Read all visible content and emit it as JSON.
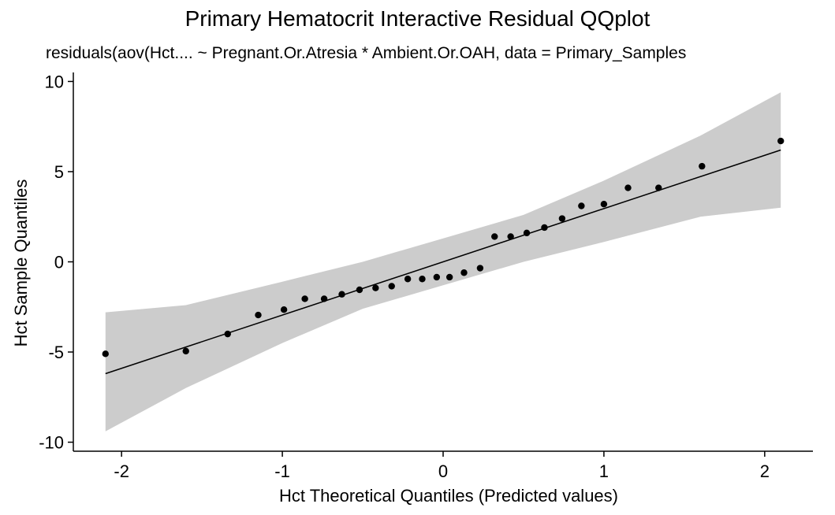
{
  "chart_data": {
    "type": "scatter",
    "title": "Primary Hematocrit Interactive Residual QQplot",
    "subtitle": "residuals(aov(Hct.... ~ Pregnant.Or.Atresia * Ambient.Or.OAH, data = Primary_Samples",
    "xlabel": "Hct Theoretical Quantiles (Predicted values)",
    "ylabel": "Hct Sample Quantiles",
    "xlim": [
      -2.3,
      2.3
    ],
    "ylim": [
      -10.5,
      10.5
    ],
    "x_ticks": [
      -2,
      -1,
      0,
      1,
      2
    ],
    "x_tick_labels": [
      "-2",
      "-1",
      "0",
      "1",
      "2"
    ],
    "y_ticks": [
      -10,
      -5,
      0,
      5,
      10
    ],
    "y_tick_labels": [
      "-10",
      "-5",
      "0",
      "5",
      "10"
    ],
    "grid": false,
    "points": [
      {
        "x": -2.1,
        "y": -5.1
      },
      {
        "x": -1.6,
        "y": -4.95
      },
      {
        "x": -1.34,
        "y": -4.0
      },
      {
        "x": -1.15,
        "y": -2.95
      },
      {
        "x": -0.99,
        "y": -2.65
      },
      {
        "x": -0.86,
        "y": -2.05
      },
      {
        "x": -0.74,
        "y": -2.05
      },
      {
        "x": -0.63,
        "y": -1.8
      },
      {
        "x": -0.52,
        "y": -1.55
      },
      {
        "x": -0.42,
        "y": -1.45
      },
      {
        "x": -0.32,
        "y": -1.35
      },
      {
        "x": -0.22,
        "y": -0.95
      },
      {
        "x": -0.13,
        "y": -0.95
      },
      {
        "x": -0.04,
        "y": -0.85
      },
      {
        "x": 0.04,
        "y": -0.85
      },
      {
        "x": 0.13,
        "y": -0.6
      },
      {
        "x": 0.23,
        "y": -0.35
      },
      {
        "x": 0.32,
        "y": 1.4
      },
      {
        "x": 0.42,
        "y": 1.4
      },
      {
        "x": 0.52,
        "y": 1.6
      },
      {
        "x": 0.63,
        "y": 1.9
      },
      {
        "x": 0.74,
        "y": 2.4
      },
      {
        "x": 0.86,
        "y": 3.1
      },
      {
        "x": 1.0,
        "y": 3.2
      },
      {
        "x": 1.15,
        "y": 4.1
      },
      {
        "x": 1.34,
        "y": 4.1
      },
      {
        "x": 1.61,
        "y": 5.3
      },
      {
        "x": 2.1,
        "y": 6.7
      }
    ],
    "reference_line": {
      "x": [
        -2.1,
        2.1
      ],
      "y": [
        -6.2,
        6.2
      ]
    },
    "confidence_band": {
      "x": [
        -2.1,
        -1.6,
        -1.0,
        -0.5,
        0.0,
        0.5,
        1.0,
        1.6,
        2.1
      ],
      "lower": [
        -9.4,
        -7.0,
        -4.5,
        -2.6,
        -1.3,
        0.0,
        1.1,
        2.5,
        3.0
      ],
      "upper": [
        -2.8,
        -2.4,
        -1.1,
        0.0,
        1.3,
        2.6,
        4.5,
        7.0,
        9.4
      ]
    },
    "colors": {
      "points": "#000000",
      "line": "#000000",
      "band": "#cccccc"
    }
  }
}
